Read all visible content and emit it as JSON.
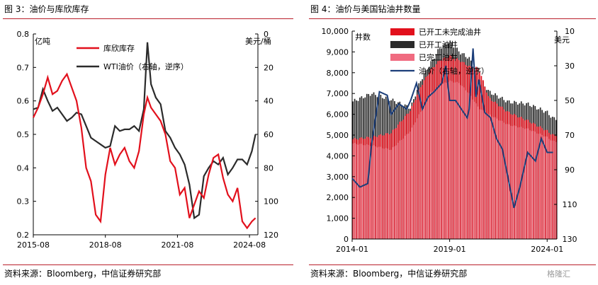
{
  "left": {
    "title": "图 3：油价与库欣库存",
    "source": "资料来源：Bloomberg，中信证券研究部"
  },
  "right": {
    "title": "图 4：油价与美国钻油井数量",
    "source": "资料来源：Bloomberg，中信证券研究部"
  },
  "watermark": "格隆汇",
  "colors": {
    "red": "#e2101c",
    "black": "#2b2b2b",
    "pink": "#f06b80",
    "navy": "#1d3f7a",
    "rule": "#b91f2a"
  },
  "chart_data": [
    {
      "type": "line",
      "ylabel_left": "亿吨",
      "ylabel_right": "美元/桶",
      "ylim_left": [
        0.2,
        0.8
      ],
      "ylim_right": [
        120,
        0
      ],
      "right_axis_inverted": true,
      "x_ticks": [
        "2015-08",
        "2018-08",
        "2021-08",
        "2024-08"
      ],
      "y_left_ticks": [
        "0.8",
        "0.7",
        "0.6",
        "0.5",
        "0.4",
        "0.3",
        "0.2"
      ],
      "y_right_ticks": [
        "0",
        "20",
        "40",
        "60",
        "80",
        "100",
        "120"
      ],
      "legend_position": "top-center",
      "series": [
        {
          "name": "库欣库存",
          "axis": "left",
          "x": [
            2015.6,
            2015.8,
            2016.0,
            2016.2,
            2016.4,
            2016.6,
            2016.8,
            2017.0,
            2017.2,
            2017.4,
            2017.6,
            2017.8,
            2018.0,
            2018.2,
            2018.4,
            2018.6,
            2018.8,
            2019.0,
            2019.2,
            2019.4,
            2019.6,
            2019.8,
            2020.0,
            2020.2,
            2020.35,
            2020.5,
            2020.7,
            2020.9,
            2021.1,
            2021.3,
            2021.5,
            2021.7,
            2021.9,
            2022.1,
            2022.3,
            2022.5,
            2022.7,
            2022.9,
            2023.1,
            2023.3,
            2023.5,
            2023.7,
            2023.9,
            2024.1,
            2024.3,
            2024.5,
            2024.7,
            2024.85
          ],
          "values": [
            0.55,
            0.58,
            0.62,
            0.67,
            0.62,
            0.63,
            0.66,
            0.68,
            0.64,
            0.6,
            0.52,
            0.4,
            0.36,
            0.26,
            0.24,
            0.38,
            0.46,
            0.41,
            0.44,
            0.46,
            0.42,
            0.4,
            0.45,
            0.56,
            0.61,
            0.58,
            0.56,
            0.54,
            0.5,
            0.42,
            0.4,
            0.32,
            0.34,
            0.25,
            0.29,
            0.33,
            0.31,
            0.38,
            0.43,
            0.44,
            0.37,
            0.32,
            0.3,
            0.34,
            0.24,
            0.22,
            0.24,
            0.25
          ]
        },
        {
          "name": "WTI油价（右轴，逆序）",
          "axis": "right",
          "x": [
            2015.6,
            2015.8,
            2016.0,
            2016.2,
            2016.4,
            2016.6,
            2016.8,
            2017.0,
            2017.2,
            2017.4,
            2017.6,
            2017.8,
            2018.0,
            2018.2,
            2018.4,
            2018.6,
            2018.8,
            2019.0,
            2019.2,
            2019.4,
            2019.6,
            2019.8,
            2020.0,
            2020.2,
            2020.35,
            2020.5,
            2020.7,
            2020.9,
            2021.1,
            2021.3,
            2021.5,
            2021.7,
            2021.9,
            2022.1,
            2022.3,
            2022.5,
            2022.7,
            2022.9,
            2023.1,
            2023.3,
            2023.5,
            2023.7,
            2023.9,
            2024.1,
            2024.3,
            2024.5,
            2024.7,
            2024.85
          ],
          "values": [
            45,
            44,
            33,
            40,
            46,
            44,
            48,
            52,
            50,
            47,
            48,
            55,
            62,
            64,
            66,
            68,
            67,
            55,
            58,
            57,
            57,
            55,
            58,
            45,
            5,
            30,
            38,
            42,
            58,
            62,
            68,
            72,
            78,
            90,
            110,
            108,
            85,
            80,
            76,
            78,
            74,
            84,
            80,
            75,
            75,
            78,
            70,
            60
          ]
        }
      ]
    },
    {
      "type": "bar",
      "ylabel_left": "井数",
      "ylabel_right": "美元",
      "ylim_left": [
        0,
        10000
      ],
      "ylim_right": [
        130,
        10
      ],
      "right_axis_inverted": true,
      "x_ticks": [
        "2014-01",
        "2019-01",
        "2024-01"
      ],
      "y_left_ticks": [
        "10,000",
        "9,000",
        "8,000",
        "7,000",
        "6,000",
        "5,000",
        "4,000",
        "3,000",
        "2,000",
        "1,000",
        "0"
      ],
      "y_right_ticks": [
        "10",
        "30",
        "50",
        "70",
        "90",
        "110",
        "130"
      ],
      "legend_position": "top-center",
      "series": [
        {
          "name": "已开工未完成油井",
          "axis": "left",
          "x": [
            2014.0,
            2015.0,
            2016.0,
            2017.0,
            2017.5,
            2018.0,
            2018.5,
            2019.0,
            2019.5,
            2020.0,
            2020.5,
            2021.0,
            2022.0,
            2023.0,
            2024.0,
            2024.3
          ],
          "values": [
            4800,
            4900,
            5100,
            6200,
            7300,
            8100,
            8600,
            8800,
            8600,
            8300,
            8200,
            6800,
            6100,
            5700,
            5200,
            5000
          ]
        },
        {
          "name": "已开工油井",
          "axis": "left",
          "x": [
            2014.0,
            2015.0,
            2016.0,
            2017.0,
            2017.5,
            2018.0,
            2018.5,
            2019.0,
            2019.5,
            2020.0,
            2020.5,
            2021.0,
            2022.0,
            2023.0,
            2024.0,
            2024.3
          ],
          "values": [
            6600,
            7000,
            6700,
            6300,
            7600,
            8400,
            9200,
            9500,
            9000,
            8700,
            7800,
            7100,
            6600,
            6500,
            6100,
            5800
          ]
        },
        {
          "name": "已完工油井",
          "axis": "left",
          "x": [
            2014.0,
            2015.0,
            2016.0,
            2017.0,
            2017.5,
            2018.0,
            2018.5,
            2019.0,
            2019.5,
            2020.0,
            2020.5,
            2021.0,
            2022.0,
            2023.0,
            2024.0,
            2024.3
          ],
          "values": [
            4600,
            4500,
            4300,
            5200,
            6100,
            7000,
            7400,
            7600,
            7500,
            7000,
            6300,
            6000,
            5500,
            5300,
            4900,
            4700
          ]
        },
        {
          "name": "油价（右轴，逆序）",
          "axis": "right",
          "type": "line",
          "x": [
            2014.0,
            2014.4,
            2014.8,
            2015.0,
            2015.4,
            2015.8,
            2016.0,
            2016.4,
            2016.8,
            2017.0,
            2017.3,
            2017.6,
            2017.9,
            2018.2,
            2018.6,
            2018.8,
            2019.0,
            2019.3,
            2019.6,
            2019.9,
            2020.0,
            2020.2,
            2020.35,
            2020.5,
            2020.8,
            2021.1,
            2021.4,
            2021.7,
            2022.0,
            2022.3,
            2022.6,
            2023.0,
            2023.4,
            2023.7,
            2024.0,
            2024.3
          ],
          "values": [
            95,
            100,
            98,
            75,
            45,
            47,
            58,
            52,
            55,
            50,
            40,
            55,
            48,
            45,
            40,
            30,
            50,
            50,
            55,
            60,
            55,
            20,
            48,
            38,
            57,
            60,
            72,
            78,
            95,
            112,
            100,
            80,
            85,
            72,
            80,
            80
          ]
        }
      ]
    }
  ]
}
